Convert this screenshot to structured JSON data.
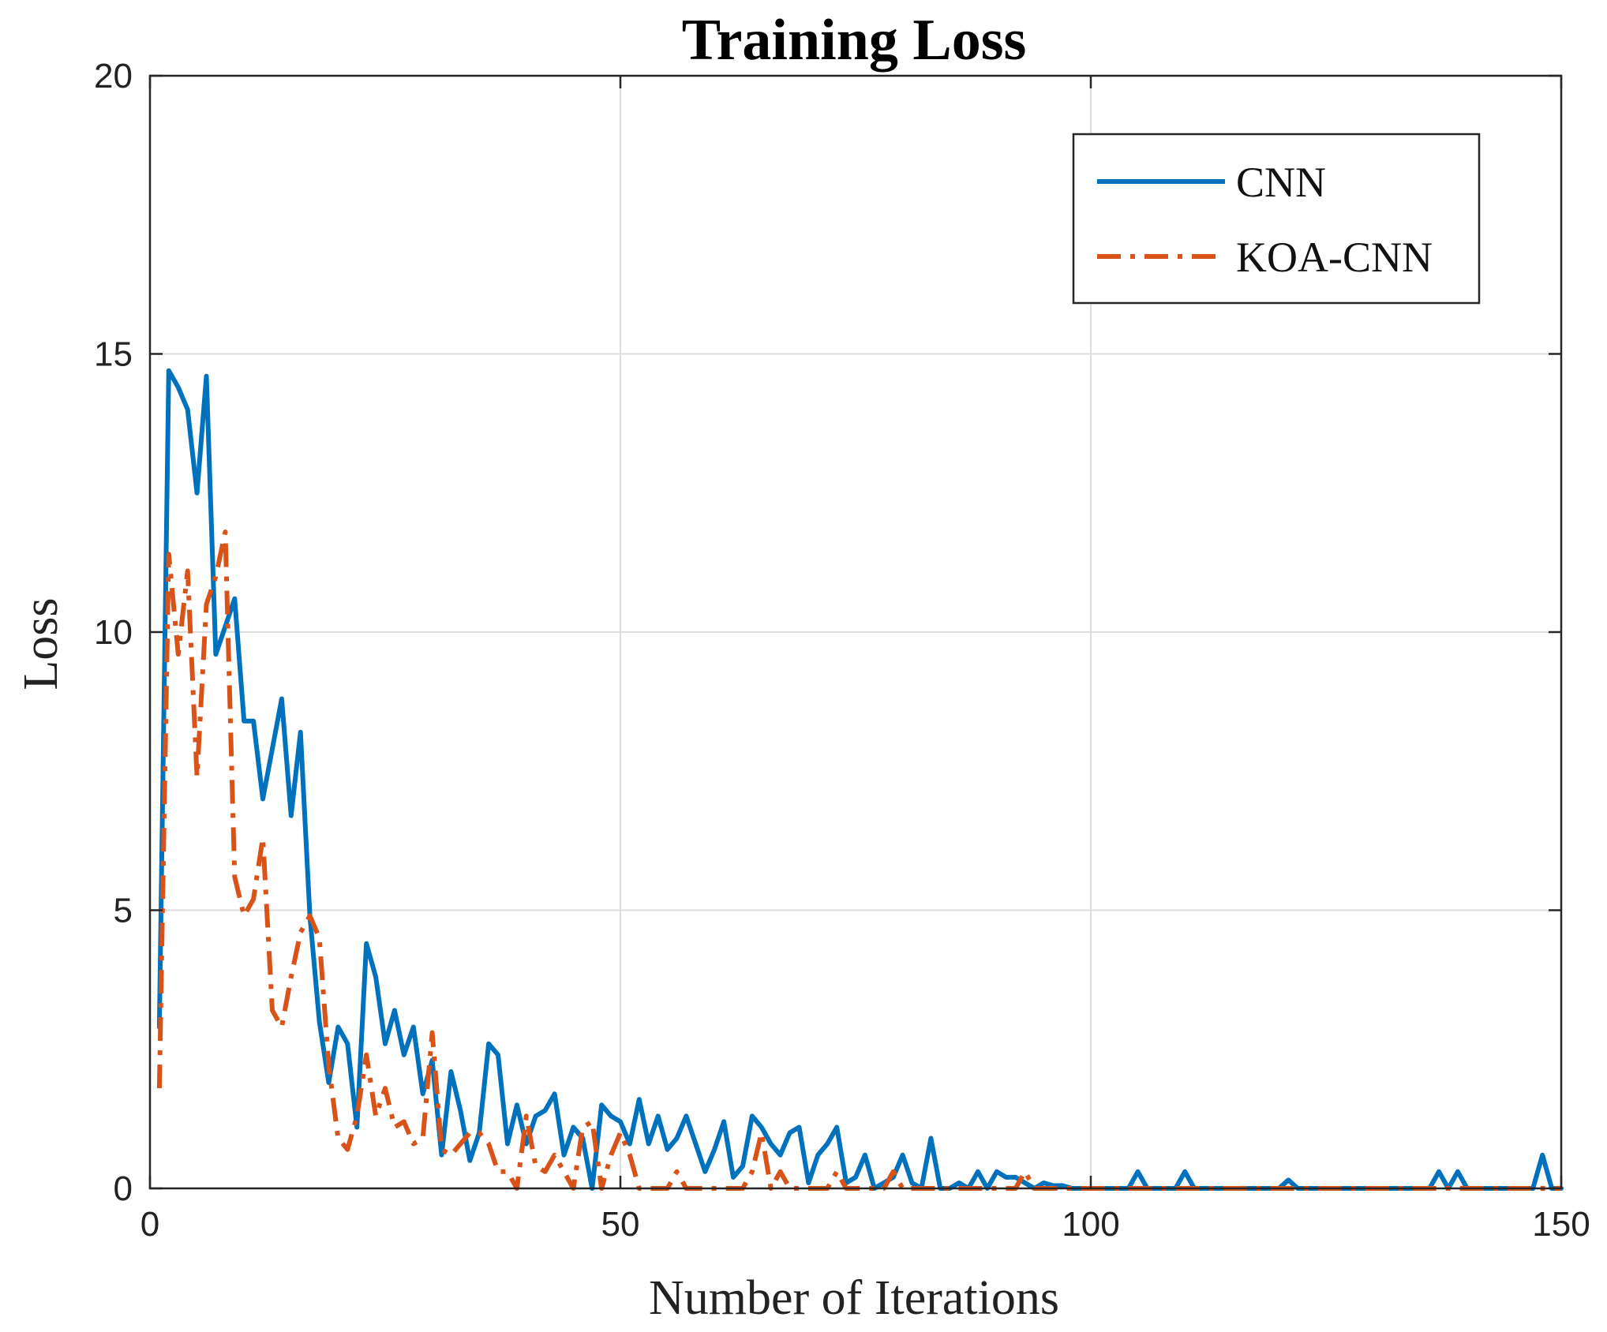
{
  "chart_data": {
    "type": "line",
    "title": "Training Loss",
    "xlabel": "Number of Iterations",
    "ylabel": "Loss",
    "xlim": [
      0,
      150
    ],
    "ylim": [
      0,
      20
    ],
    "xticks": [
      0,
      50,
      100,
      150
    ],
    "yticks": [
      0,
      5,
      10,
      15,
      20
    ],
    "grid": true,
    "legend_position": "top-right",
    "series": [
      {
        "name": "CNN",
        "color": "#0072BD",
        "style": "solid",
        "x": [
          1,
          2,
          3,
          4,
          5,
          6,
          7,
          8,
          9,
          10,
          11,
          12,
          13,
          14,
          15,
          16,
          17,
          18,
          19,
          20,
          21,
          22,
          23,
          24,
          25,
          26,
          27,
          28,
          29,
          30,
          31,
          32,
          33,
          34,
          35,
          36,
          37,
          38,
          39,
          40,
          41,
          42,
          43,
          44,
          45,
          46,
          47,
          48,
          49,
          50,
          51,
          52,
          53,
          54,
          55,
          56,
          57,
          58,
          59,
          60,
          61,
          62,
          63,
          64,
          65,
          66,
          67,
          68,
          69,
          70,
          71,
          72,
          73,
          74,
          75,
          76,
          77,
          78,
          79,
          80,
          81,
          82,
          83,
          84,
          85,
          86,
          87,
          88,
          89,
          90,
          91,
          92,
          93,
          94,
          95,
          96,
          97,
          98,
          99,
          100,
          104,
          105,
          106,
          109,
          110,
          111,
          120,
          121,
          122,
          136,
          137,
          138,
          139,
          140,
          147,
          148,
          149,
          150
        ],
        "y": [
          2.9,
          14.7,
          14.4,
          14.0,
          12.5,
          14.6,
          9.6,
          10.1,
          10.6,
          8.4,
          8.4,
          7.0,
          7.9,
          8.8,
          6.7,
          8.2,
          4.9,
          3.0,
          1.9,
          2.9,
          2.6,
          1.1,
          4.4,
          3.8,
          2.6,
          3.2,
          2.4,
          2.9,
          1.7,
          2.3,
          0.6,
          2.1,
          1.4,
          0.5,
          1.0,
          2.6,
          2.4,
          0.8,
          1.5,
          0.8,
          1.3,
          1.4,
          1.7,
          0.6,
          1.1,
          0.9,
          0.0,
          1.5,
          1.3,
          1.2,
          0.8,
          1.6,
          0.8,
          1.3,
          0.7,
          0.9,
          1.3,
          0.8,
          0.3,
          0.7,
          1.2,
          0.2,
          0.4,
          1.3,
          1.1,
          0.8,
          0.6,
          1.0,
          1.1,
          0.1,
          0.6,
          0.8,
          1.1,
          0.1,
          0.2,
          0.6,
          0.0,
          0.1,
          0.2,
          0.6,
          0.1,
          0.0,
          0.9,
          0.0,
          0.0,
          0.1,
          0.0,
          0.3,
          0.0,
          0.3,
          0.2,
          0.2,
          0.1,
          0.0,
          0.1,
          0.05,
          0.05,
          0.0,
          0.0,
          0.0,
          0.0,
          0.3,
          0.0,
          0.0,
          0.3,
          0.0,
          0.0,
          0.15,
          0.0,
          0.0,
          0.3,
          0.0,
          0.3,
          0.0,
          0.0,
          0.6,
          0.0,
          0.0
        ]
      },
      {
        "name": "KOA-CNN",
        "color": "#D95319",
        "style": "dashdot",
        "x": [
          1,
          2,
          3,
          4,
          5,
          6,
          7,
          8,
          9,
          10,
          11,
          12,
          13,
          14,
          15,
          16,
          17,
          18,
          19,
          20,
          21,
          22,
          23,
          24,
          25,
          26,
          27,
          28,
          29,
          30,
          31,
          32,
          33,
          34,
          35,
          36,
          37,
          38,
          39,
          40,
          41,
          42,
          43,
          44,
          45,
          46,
          47,
          48,
          49,
          50,
          51,
          52,
          53,
          54,
          55,
          56,
          57,
          58,
          59,
          60,
          61,
          62,
          63,
          64,
          65,
          66,
          67,
          68,
          69,
          70,
          71,
          72,
          73,
          74,
          75,
          76,
          77,
          78,
          79,
          80,
          81,
          82,
          83,
          84,
          85,
          86,
          87,
          88,
          89,
          90,
          91,
          92,
          93,
          94,
          95,
          96,
          97,
          98,
          99,
          100,
          150
        ],
        "y": [
          1.8,
          11.4,
          9.6,
          11.1,
          7.4,
          10.5,
          11.0,
          11.8,
          5.6,
          4.9,
          5.2,
          6.3,
          3.2,
          2.9,
          3.8,
          4.6,
          4.9,
          4.5,
          2.2,
          0.9,
          0.7,
          1.3,
          2.4,
          1.3,
          1.8,
          1.1,
          1.2,
          0.8,
          0.9,
          2.8,
          0.7,
          0.6,
          0.8,
          1.0,
          1.0,
          0.8,
          0.3,
          0.3,
          0.0,
          1.3,
          0.4,
          0.3,
          0.6,
          0.3,
          0.0,
          1.1,
          1.2,
          0.0,
          0.6,
          1.0,
          0.6,
          0.0,
          0.0,
          0.0,
          0.0,
          0.3,
          0.0,
          0.0,
          0.0,
          0.0,
          0.0,
          0.0,
          0.0,
          0.3,
          1.0,
          0.0,
          0.3,
          0.0,
          0.0,
          0.0,
          0.0,
          0.0,
          0.3,
          0.0,
          0.0,
          0.0,
          0.0,
          0.0,
          0.3,
          0.0,
          0.0,
          0.0,
          0.0,
          0.0,
          0.0,
          0.0,
          0.0,
          0.0,
          0.0,
          0.0,
          0.0,
          0.0,
          0.3,
          0.0,
          0.0,
          0.0,
          0.0,
          0.0,
          0.0,
          0.0,
          0.0
        ]
      }
    ]
  }
}
